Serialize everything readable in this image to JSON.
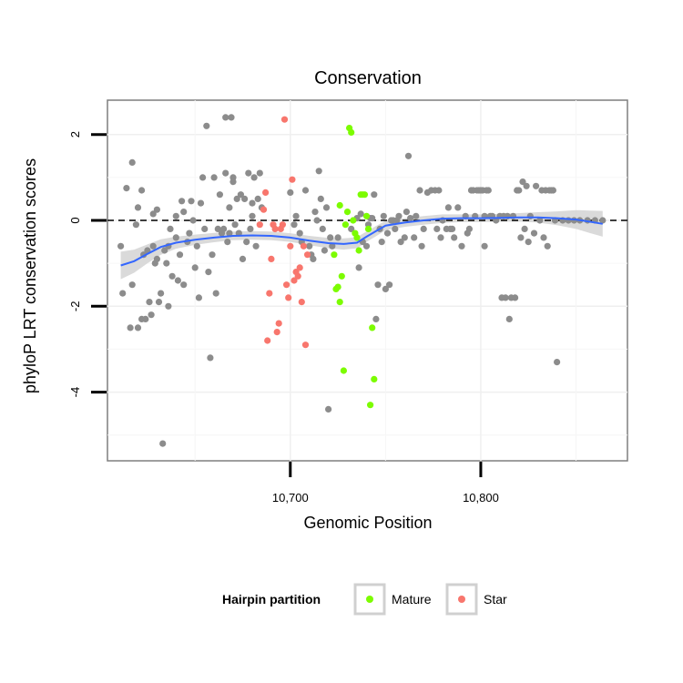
{
  "chart_data": {
    "type": "scatter",
    "title": "Conservation",
    "xlabel": "Genomic Position",
    "ylabel": "phyloP LRT conservation scores",
    "xlim": [
      10604,
      10877
    ],
    "ylim": [
      -5.6,
      2.8
    ],
    "x_ticks": [
      10700,
      10800
    ],
    "x_tick_labels": [
      "10,700",
      "10,800"
    ],
    "y_ticks": [
      -4,
      -2,
      0,
      2
    ],
    "y_tick_labels": [
      "-4",
      "-2",
      "0",
      "2"
    ],
    "reference_line": {
      "y": 0,
      "style": "dashed"
    },
    "grid": true,
    "legend": {
      "title": "Hairpin partition",
      "placement": "bottom",
      "entries": [
        {
          "name": "Mature",
          "color": "#7cfc00"
        },
        {
          "name": "Star",
          "color": "#f8766d"
        }
      ]
    },
    "colors": {
      "other": "#8c8c8c",
      "mature": "#7cfc00",
      "star": "#f8766d",
      "smooth": "#3366ff",
      "band": "#d3d3d3"
    },
    "series": [
      {
        "name": "Other",
        "color": "#8c8c8c",
        "points": [
          [
            10611,
            -0.6
          ],
          [
            10612,
            -1.7
          ],
          [
            10614,
            0.75
          ],
          [
            10616,
            -2.5
          ],
          [
            10617,
            -1.5
          ],
          [
            10617,
            1.35
          ],
          [
            10619,
            -0.1
          ],
          [
            10620,
            0.3
          ],
          [
            10620,
            -2.5
          ],
          [
            10622,
            0.7
          ],
          [
            10622,
            -2.3
          ],
          [
            10623,
            -0.8
          ],
          [
            10624,
            -2.3
          ],
          [
            10625,
            -0.7
          ],
          [
            10626,
            -1.9
          ],
          [
            10627,
            -2.2
          ],
          [
            10628,
            -0.6
          ],
          [
            10628,
            0.15
          ],
          [
            10629,
            -1.0
          ],
          [
            10630,
            0.25
          ],
          [
            10630,
            -0.9
          ],
          [
            10631,
            -1.9
          ],
          [
            10632,
            -1.7
          ],
          [
            10633,
            -5.2
          ],
          [
            10634,
            -0.7
          ],
          [
            10635,
            -1.0
          ],
          [
            10636,
            -2.0
          ],
          [
            10636,
            -0.6
          ],
          [
            10637,
            -0.2
          ],
          [
            10638,
            -1.3
          ],
          [
            10640,
            0.1
          ],
          [
            10640,
            -0.4
          ],
          [
            10641,
            -1.4
          ],
          [
            10642,
            -0.8
          ],
          [
            10643,
            0.45
          ],
          [
            10644,
            0.2
          ],
          [
            10644,
            -1.5
          ],
          [
            10646,
            -0.5
          ],
          [
            10647,
            -0.3
          ],
          [
            10648,
            0.45
          ],
          [
            10649,
            0.0
          ],
          [
            10650,
            -1.1
          ],
          [
            10651,
            -0.6
          ],
          [
            10652,
            -1.8
          ],
          [
            10653,
            0.4
          ],
          [
            10654,
            1.0
          ],
          [
            10655,
            -0.2
          ],
          [
            10656,
            2.2
          ],
          [
            10657,
            -1.2
          ],
          [
            10658,
            -3.2
          ],
          [
            10659,
            -0.8
          ],
          [
            10660,
            1.0
          ],
          [
            10661,
            -1.7
          ],
          [
            10662,
            -0.2
          ],
          [
            10663,
            0.6
          ],
          [
            10664,
            -0.3
          ],
          [
            10665,
            -0.2
          ],
          [
            10666,
            2.4
          ],
          [
            10666,
            1.1
          ],
          [
            10667,
            -0.5
          ],
          [
            10668,
            0.3
          ],
          [
            10668,
            -0.3
          ],
          [
            10669,
            2.4
          ],
          [
            10670,
            1.0
          ],
          [
            10670,
            0.9
          ],
          [
            10671,
            -0.1
          ],
          [
            10672,
            0.5
          ],
          [
            10673,
            -0.3
          ],
          [
            10674,
            0.6
          ],
          [
            10675,
            -0.9
          ],
          [
            10676,
            0.5
          ],
          [
            10677,
            -0.5
          ],
          [
            10678,
            1.1
          ],
          [
            10679,
            -0.2
          ],
          [
            10680,
            0.4
          ],
          [
            10680,
            0.1
          ],
          [
            10681,
            1.0
          ],
          [
            10682,
            -0.6
          ],
          [
            10683,
            0.5
          ],
          [
            10684,
            1.1
          ],
          [
            10685,
            0.3
          ],
          [
            10700,
            0.65
          ],
          [
            10702,
            -0.1
          ],
          [
            10703,
            0.1
          ],
          [
            10705,
            -0.3
          ],
          [
            10706,
            -0.5
          ],
          [
            10708,
            0.7
          ],
          [
            10710,
            -0.6
          ],
          [
            10711,
            -0.8
          ],
          [
            10712,
            -0.9
          ],
          [
            10713,
            0.2
          ],
          [
            10714,
            0.0
          ],
          [
            10715,
            1.15
          ],
          [
            10716,
            0.5
          ],
          [
            10717,
            -0.2
          ],
          [
            10718,
            -0.7
          ],
          [
            10719,
            0.3
          ],
          [
            10720,
            -4.4
          ],
          [
            10721,
            -0.4
          ],
          [
            10722,
            -0.6
          ],
          [
            10725,
            -0.4
          ],
          [
            10732,
            -0.2
          ],
          [
            10735,
            0.05
          ],
          [
            10736,
            -1.1
          ],
          [
            10737,
            0.15
          ],
          [
            10738,
            -0.5
          ],
          [
            10740,
            -0.6
          ],
          [
            10741,
            -0.1
          ],
          [
            10742,
            0.05
          ],
          [
            10743,
            0.05
          ],
          [
            10744,
            0.6
          ],
          [
            10745,
            -2.3
          ],
          [
            10746,
            -1.5
          ],
          [
            10747,
            -0.2
          ],
          [
            10748,
            -0.5
          ],
          [
            10749,
            0.1
          ],
          [
            10750,
            -1.6
          ],
          [
            10751,
            -0.3
          ],
          [
            10752,
            -1.5
          ],
          [
            10753,
            0.0
          ],
          [
            10754,
            0.0
          ],
          [
            10755,
            -0.2
          ],
          [
            10756,
            0.0
          ],
          [
            10757,
            0.1
          ],
          [
            10758,
            -0.5
          ],
          [
            10760,
            -0.4
          ],
          [
            10761,
            0.2
          ],
          [
            10762,
            1.5
          ],
          [
            10763,
            0.05
          ],
          [
            10765,
            -0.4
          ],
          [
            10766,
            0.1
          ],
          [
            10768,
            0.7
          ],
          [
            10769,
            -0.6
          ],
          [
            10770,
            -0.2
          ],
          [
            10772,
            0.65
          ],
          [
            10774,
            0.7
          ],
          [
            10776,
            0.7
          ],
          [
            10777,
            -0.2
          ],
          [
            10778,
            0.7
          ],
          [
            10779,
            -0.4
          ],
          [
            10780,
            0.0
          ],
          [
            10782,
            -0.2
          ],
          [
            10783,
            0.3
          ],
          [
            10784,
            -0.2
          ],
          [
            10785,
            -0.2
          ],
          [
            10786,
            -0.4
          ],
          [
            10788,
            0.3
          ],
          [
            10790,
            -0.6
          ],
          [
            10792,
            0.1
          ],
          [
            10793,
            -0.3
          ],
          [
            10794,
            -0.2
          ],
          [
            10795,
            0.7
          ],
          [
            10796,
            0.7
          ],
          [
            10797,
            0.1
          ],
          [
            10798,
            0.7
          ],
          [
            10799,
            0.7
          ],
          [
            10800,
            0.7
          ],
          [
            10801,
            0.7
          ],
          [
            10802,
            0.1
          ],
          [
            10802,
            -0.6
          ],
          [
            10803,
            0.7
          ],
          [
            10804,
            0.7
          ],
          [
            10805,
            0.1
          ],
          [
            10806,
            0.1
          ],
          [
            10808,
            0.0
          ],
          [
            10810,
            0.1
          ],
          [
            10811,
            -1.8
          ],
          [
            10812,
            0.1
          ],
          [
            10813,
            -1.8
          ],
          [
            10814,
            0.1
          ],
          [
            10815,
            -2.3
          ],
          [
            10816,
            -1.8
          ],
          [
            10817,
            0.1
          ],
          [
            10818,
            -1.8
          ],
          [
            10819,
            0.7
          ],
          [
            10820,
            0.7
          ],
          [
            10821,
            -0.4
          ],
          [
            10822,
            0.9
          ],
          [
            10823,
            -0.2
          ],
          [
            10824,
            0.8
          ],
          [
            10825,
            -0.5
          ],
          [
            10826,
            0.1
          ],
          [
            10828,
            -0.3
          ],
          [
            10829,
            0.8
          ],
          [
            10831,
            0.0
          ],
          [
            10832,
            0.7
          ],
          [
            10833,
            -0.4
          ],
          [
            10834,
            0.7
          ],
          [
            10835,
            -0.6
          ],
          [
            10836,
            0.7
          ],
          [
            10837,
            0.7
          ],
          [
            10838,
            0.7
          ],
          [
            10839,
            0.0
          ],
          [
            10840,
            -3.3
          ],
          [
            10843,
            0.0
          ],
          [
            10846,
            0.0
          ],
          [
            10849,
            0.0
          ],
          [
            10852,
            0.0
          ],
          [
            10856,
            0.0
          ],
          [
            10860,
            0.0
          ],
          [
            10864,
            0.0
          ]
        ]
      },
      {
        "name": "Mature",
        "color": "#7cfc00",
        "points": [
          [
            10723,
            -0.8
          ],
          [
            10724,
            -1.6
          ],
          [
            10725,
            -1.55
          ],
          [
            10726,
            0.35
          ],
          [
            10726,
            -1.9
          ],
          [
            10727,
            -1.3
          ],
          [
            10728,
            -3.5
          ],
          [
            10729,
            -0.1
          ],
          [
            10730,
            0.2
          ],
          [
            10731,
            2.15
          ],
          [
            10732,
            2.05
          ],
          [
            10733,
            0.0
          ],
          [
            10734,
            -0.3
          ],
          [
            10735,
            -0.4
          ],
          [
            10736,
            -0.7
          ],
          [
            10737,
            0.6
          ],
          [
            10738,
            0.6
          ],
          [
            10739,
            0.6
          ],
          [
            10740,
            0.1
          ],
          [
            10741,
            -0.2
          ],
          [
            10742,
            -4.3
          ],
          [
            10743,
            -2.5
          ],
          [
            10744,
            -3.7
          ]
        ]
      },
      {
        "name": "Star",
        "color": "#f8766d",
        "points": [
          [
            10684,
            -0.1
          ],
          [
            10686,
            0.25
          ],
          [
            10687,
            0.65
          ],
          [
            10688,
            -2.8
          ],
          [
            10689,
            -1.7
          ],
          [
            10690,
            -0.9
          ],
          [
            10691,
            -0.1
          ],
          [
            10692,
            -0.2
          ],
          [
            10693,
            -2.6
          ],
          [
            10694,
            -2.4
          ],
          [
            10695,
            -0.2
          ],
          [
            10696,
            -0.1
          ],
          [
            10697,
            2.35
          ],
          [
            10698,
            -1.5
          ],
          [
            10699,
            -1.8
          ],
          [
            10700,
            -0.6
          ],
          [
            10701,
            0.95
          ],
          [
            10702,
            -1.4
          ],
          [
            10703,
            -1.2
          ],
          [
            10704,
            -1.3
          ],
          [
            10705,
            -1.1
          ],
          [
            10706,
            -1.9
          ],
          [
            10707,
            -0.6
          ],
          [
            10708,
            -2.9
          ],
          [
            10709,
            -0.8
          ]
        ]
      }
    ],
    "smooth": {
      "method": "loess",
      "points": [
        [
          10611,
          -1.05
        ],
        [
          10618,
          -0.95
        ],
        [
          10625,
          -0.78
        ],
        [
          10632,
          -0.62
        ],
        [
          10640,
          -0.52
        ],
        [
          10650,
          -0.45
        ],
        [
          10660,
          -0.4
        ],
        [
          10670,
          -0.36
        ],
        [
          10680,
          -0.35
        ],
        [
          10690,
          -0.36
        ],
        [
          10700,
          -0.4
        ],
        [
          10710,
          -0.47
        ],
        [
          10720,
          -0.53
        ],
        [
          10728,
          -0.55
        ],
        [
          10735,
          -0.52
        ],
        [
          10740,
          -0.38
        ],
        [
          10745,
          -0.25
        ],
        [
          10750,
          -0.12
        ],
        [
          10760,
          -0.05
        ],
        [
          10770,
          0.0
        ],
        [
          10780,
          0.04
        ],
        [
          10790,
          0.05
        ],
        [
          10800,
          0.05
        ],
        [
          10810,
          0.06
        ],
        [
          10820,
          0.07
        ],
        [
          10830,
          0.07
        ],
        [
          10840,
          0.05
        ],
        [
          10850,
          0.02
        ],
        [
          10857,
          -0.03
        ],
        [
          10864,
          -0.08
        ]
      ],
      "band_halfwidth": [
        0.32,
        0.27,
        0.22,
        0.18,
        0.14,
        0.12,
        0.11,
        0.1,
        0.1,
        0.1,
        0.1,
        0.11,
        0.12,
        0.13,
        0.13,
        0.12,
        0.12,
        0.11,
        0.1,
        0.1,
        0.1,
        0.09,
        0.09,
        0.09,
        0.1,
        0.12,
        0.16,
        0.22,
        0.26,
        0.3
      ]
    }
  }
}
